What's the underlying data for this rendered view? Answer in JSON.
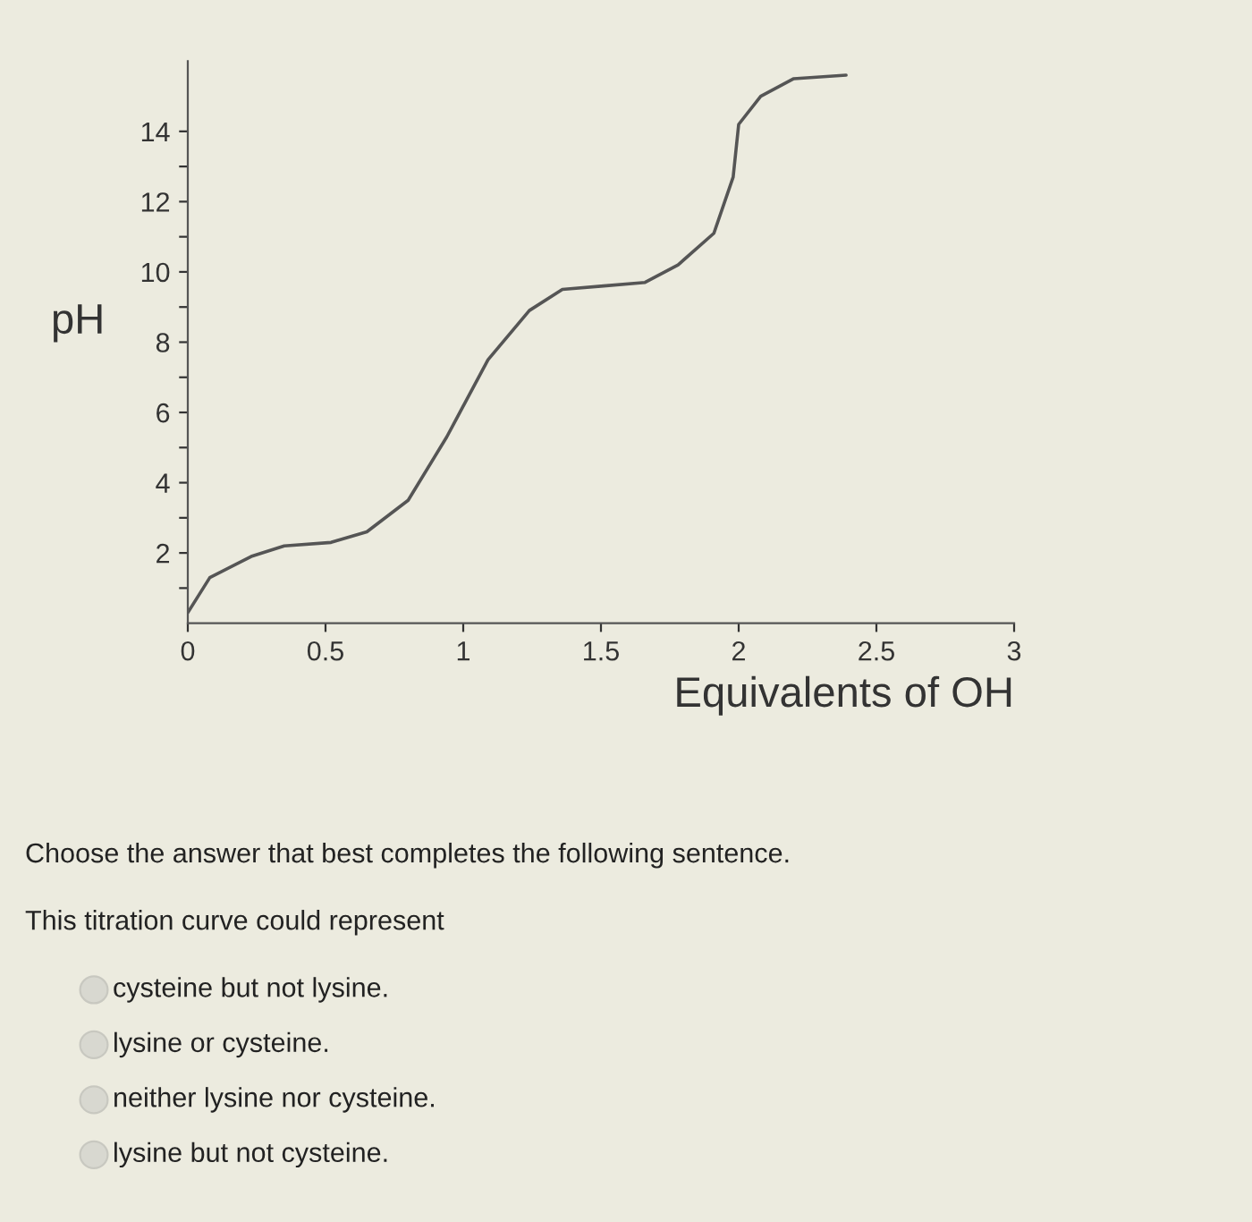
{
  "chart_data": {
    "type": "line",
    "xlabel": "Equivalents of OH",
    "ylabel": "pH",
    "x": [
      0.0,
      0.08,
      0.23,
      0.35,
      0.52,
      0.65,
      0.8,
      0.94,
      1.09,
      1.24,
      1.36,
      1.51,
      1.66,
      1.78,
      1.91,
      1.98,
      2.0,
      2.08,
      2.2,
      2.39
    ],
    "series": [
      {
        "color": "#555555",
        "values": [
          0.3,
          1.3,
          1.9,
          2.2,
          2.3,
          2.6,
          3.5,
          5.3,
          7.5,
          8.9,
          9.5,
          9.6,
          9.7,
          10.2,
          11.1,
          12.7,
          14.2,
          15.0,
          15.5,
          15.6
        ]
      }
    ],
    "xlim": [
      0,
      3
    ],
    "xticks": [
      0,
      0.5,
      1,
      1.5,
      2,
      2.5,
      3
    ],
    "ylim": [
      0,
      16
    ],
    "yticks": [
      {
        "value": 1,
        "label": null
      },
      2,
      {
        "value": 3,
        "label": null
      },
      4,
      {
        "value": 5,
        "label": null
      },
      6,
      {
        "value": 7,
        "label": null
      },
      8,
      {
        "value": 9,
        "label": null
      },
      10,
      {
        "value": 11,
        "label": null
      },
      12,
      {
        "value": 13,
        "label": null
      },
      14
    ],
    "grid": false,
    "legend": false,
    "marker": "none",
    "line_style": "solid",
    "annotations": [
      "Choose the answer that best completes the following sentence.",
      "This titration curve could represent",
      "cysteine but not lysine.",
      "lysine or cysteine.",
      "neither lysine nor cysteine.",
      "lysine but not cysteine."
    ]
  }
}
